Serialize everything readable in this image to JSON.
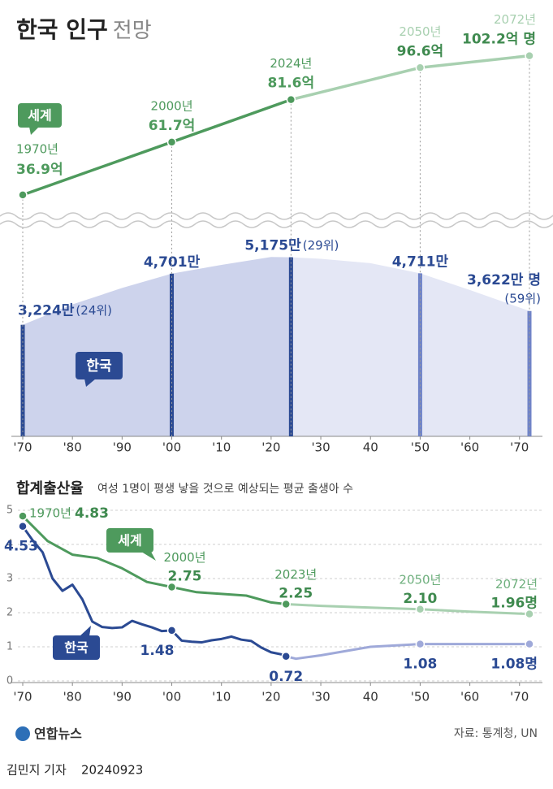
{
  "header": {
    "title": "한국 인구",
    "title_suffix": "전망"
  },
  "chart_data": [
    {
      "type": "population",
      "xlim": [
        1970,
        2072
      ],
      "xticks": [
        {
          "value": 1970,
          "label": "'70"
        },
        {
          "value": 1980,
          "label": "'80"
        },
        {
          "value": 1990,
          "label": "'90"
        },
        {
          "value": 2000,
          "label": "'00"
        },
        {
          "value": 2010,
          "label": "'10"
        },
        {
          "value": 2020,
          "label": "'20"
        },
        {
          "value": 2030,
          "label": "'30"
        },
        {
          "value": 2040,
          "label": "40"
        },
        {
          "value": 2050,
          "label": "'50"
        },
        {
          "value": 2060,
          "label": "'60"
        },
        {
          "value": 2070,
          "label": "'70"
        }
      ],
      "ylim": [
        30,
        115
      ],
      "y2lim": [
        0,
        5800
      ],
      "projection_start": 2024,
      "series": [
        {
          "name": "세계",
          "color": "#4e9a5d",
          "projection_color": "#a8d0b0",
          "x": [
            1970,
            2000,
            2024,
            2050,
            2072
          ],
          "values": [
            36.9,
            61.7,
            81.6,
            96.6,
            102.2
          ],
          "value_labels": [
            "36.9억",
            "61.7억",
            "81.6억",
            "96.6억",
            "102.2억 명"
          ],
          "point_labels": [
            "1970년",
            "2000년",
            "2024년",
            "2050년",
            "2072년"
          ]
        },
        {
          "name": "한국",
          "axis": "y2",
          "color": "#2b4a93",
          "projection_color": "#6f83c8",
          "x": [
            1970,
            1980,
            1990,
            2000,
            2010,
            2020,
            2024,
            2030,
            2040,
            2050,
            2060,
            2072
          ],
          "values": [
            3224,
            3812,
            4287,
            4701,
            4955,
            5184,
            5175,
            5131,
            5006,
            4711,
            4230,
            3622
          ],
          "value_labels": [
            "3,224만",
            null,
            null,
            "4,701만",
            null,
            null,
            "5,175만",
            null,
            null,
            "4,711만",
            null,
            "3,622만 명"
          ],
          "rank_labels": [
            "(24위)",
            null,
            null,
            null,
            null,
            null,
            "(29위)",
            null,
            null,
            null,
            null,
            "(59위)"
          ]
        }
      ]
    },
    {
      "type": "line",
      "title": "합계출산율",
      "subtitle": "여성 1명이 평생 낳을 것으로 예상되는 평균 출생아 수",
      "xlim": [
        1970,
        2072
      ],
      "xticks": [
        {
          "value": 1970,
          "label": "'70"
        },
        {
          "value": 1980,
          "label": "'80"
        },
        {
          "value": 1990,
          "label": "'90"
        },
        {
          "value": 2000,
          "label": "'00"
        },
        {
          "value": 2010,
          "label": "'10"
        },
        {
          "value": 2020,
          "label": "'20"
        },
        {
          "value": 2030,
          "label": "'30"
        },
        {
          "value": 2040,
          "label": "40"
        },
        {
          "value": 2050,
          "label": "'50"
        },
        {
          "value": 2060,
          "label": "'60"
        },
        {
          "value": 2070,
          "label": "'70"
        }
      ],
      "ylim": [
        0,
        5
      ],
      "yticks": [
        0,
        1,
        2,
        3,
        4,
        5
      ],
      "grid": true,
      "projection_start": 2023,
      "series": [
        {
          "name": "세계",
          "color": "#4e9a5d",
          "projection_color": "#a8d0b0",
          "x": [
            1970,
            1975,
            1980,
            1985,
            1990,
            1995,
            2000,
            2005,
            2010,
            2015,
            2020,
            2023,
            2030,
            2040,
            2050,
            2060,
            2072
          ],
          "values": [
            4.83,
            4.1,
            3.7,
            3.6,
            3.3,
            2.9,
            2.75,
            2.6,
            2.55,
            2.5,
            2.3,
            2.25,
            2.2,
            2.15,
            2.1,
            2.03,
            1.96
          ],
          "value_labels": [
            "4.83",
            null,
            null,
            null,
            null,
            null,
            "2.75",
            null,
            null,
            null,
            null,
            "2.25",
            null,
            null,
            "2.10",
            null,
            "1.96명"
          ],
          "point_labels": [
            "1970년",
            null,
            null,
            null,
            null,
            null,
            "2000년",
            null,
            null,
            null,
            null,
            "2023년",
            null,
            null,
            "2050년",
            null,
            "2072년"
          ]
        },
        {
          "name": "한국",
          "color": "#2b4a93",
          "projection_color": "#9fa9d9",
          "x": [
            1970,
            1972,
            1974,
            1976,
            1978,
            1980,
            1982,
            1984,
            1986,
            1988,
            1990,
            1992,
            1994,
            1996,
            1998,
            2000,
            2002,
            2004,
            2006,
            2008,
            2010,
            2012,
            2014,
            2016,
            2018,
            2020,
            2022,
            2023,
            2025,
            2030,
            2040,
            2050,
            2072
          ],
          "values": [
            4.53,
            4.12,
            3.77,
            3.0,
            2.64,
            2.82,
            2.39,
            1.74,
            1.58,
            1.55,
            1.57,
            1.76,
            1.66,
            1.57,
            1.46,
            1.48,
            1.18,
            1.15,
            1.13,
            1.19,
            1.23,
            1.3,
            1.21,
            1.17,
            0.98,
            0.84,
            0.78,
            0.72,
            0.65,
            0.75,
            1.0,
            1.08,
            1.08
          ],
          "value_labels": [
            "4.53",
            null,
            null,
            null,
            null,
            null,
            null,
            null,
            null,
            null,
            null,
            null,
            null,
            null,
            null,
            "1.48",
            null,
            null,
            null,
            null,
            null,
            null,
            null,
            null,
            null,
            null,
            null,
            "0.72",
            null,
            null,
            null,
            "1.08",
            "1.08명"
          ]
        }
      ]
    }
  ],
  "source": "자료: 통계청, UN",
  "logo": "연합뉴스",
  "byline": "김민지 기자",
  "date": "20240923"
}
